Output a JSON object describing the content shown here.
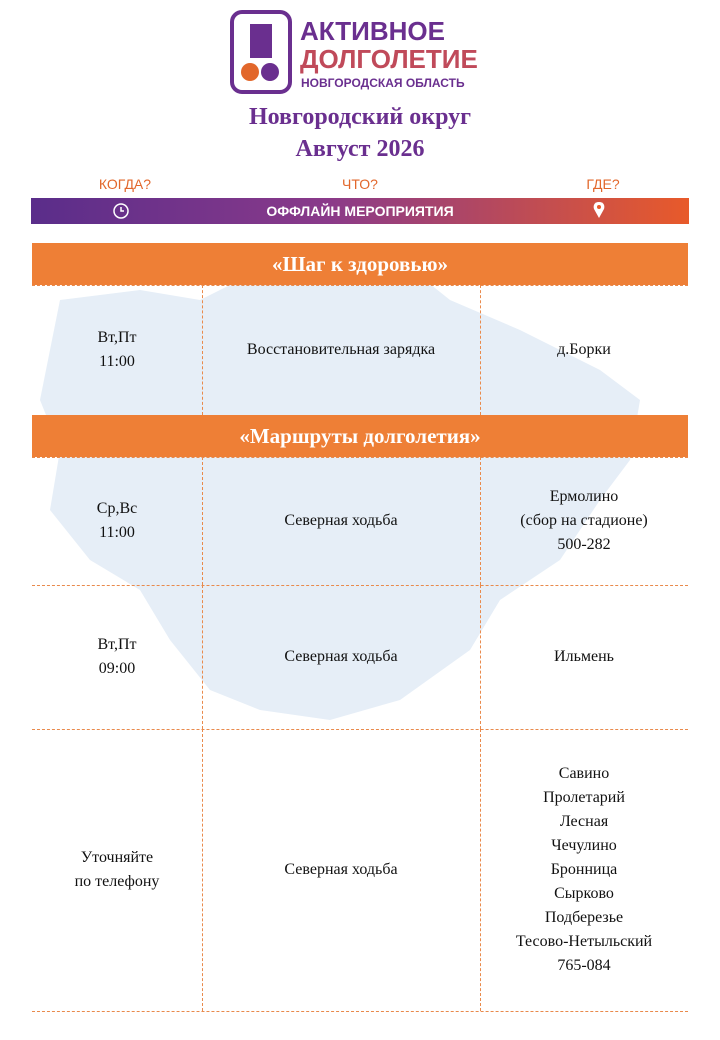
{
  "logo": {
    "line1": "АКТИВНОЕ",
    "line2": "ДОЛГОЛЕТИЕ",
    "line3": "НОВГОРОДСКАЯ ОБЛАСТЬ"
  },
  "header": {
    "title": "Новгородский округ",
    "subtitle": "Август 2026"
  },
  "columns": {
    "when": "КОГДА?",
    "what": "ЧТО?",
    "where": "ГДЕ?"
  },
  "banner": "ОФФЛАЙН МЕРОПРИЯТИЯ",
  "sections": [
    {
      "title": "«Шаг к здоровью»",
      "rows": [
        {
          "when": [
            "Вт,Пт",
            "11:00"
          ],
          "what": [
            "Восстановительная зарядка"
          ],
          "where": [
            "д.Борки"
          ]
        }
      ]
    },
    {
      "title": "«Маршруты долголетия»",
      "rows": [
        {
          "when": [
            "Ср,Вс",
            "11:00"
          ],
          "what": [
            "Северная ходьба"
          ],
          "where": [
            "Ермолино",
            "(сбор на стадионе)",
            "500-282"
          ]
        },
        {
          "when": [
            "Вт,Пт",
            "09:00"
          ],
          "what": [
            "Северная ходьба"
          ],
          "where": [
            "Ильмень"
          ]
        },
        {
          "when": [
            "Уточняйте",
            "по телефону"
          ],
          "what": [
            "Северная ходьба"
          ],
          "where": [
            "Савино",
            "Пролетарий",
            "Лесная",
            "Чечулино",
            "Бронница",
            "Сырково",
            "Подберезье",
            "Тесово-Нетыльский",
            "765-084"
          ]
        }
      ]
    }
  ]
}
